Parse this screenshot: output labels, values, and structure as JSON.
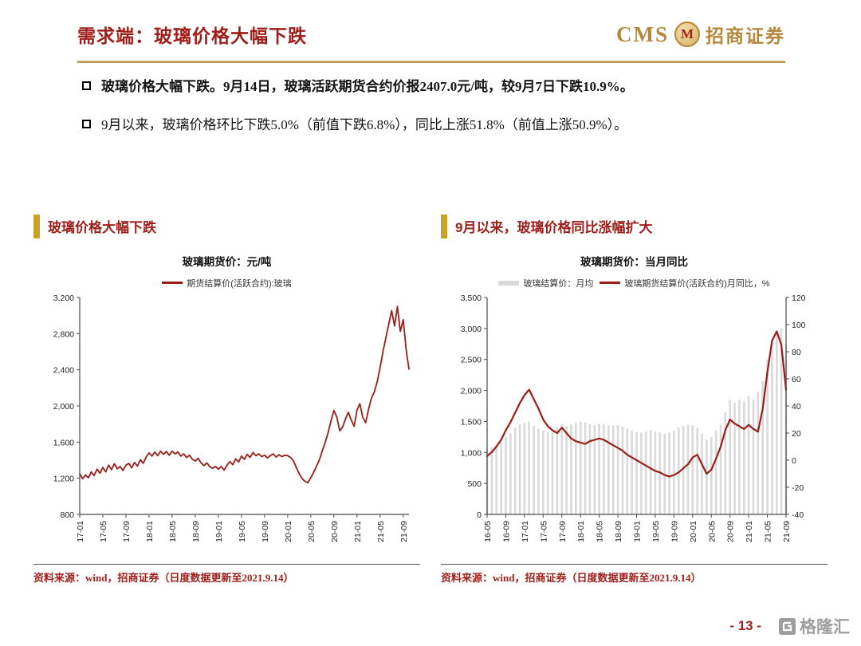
{
  "header": {
    "title": "需求端：玻璃价格大幅下跌",
    "brand": {
      "cms": "CMS",
      "logo_letter": "M",
      "name": "招商证券"
    }
  },
  "bullets": [
    {
      "lead": "玻璃价格大幅下跌。",
      "text": "9月14日，玻璃活跃期货合约价报2407.0元/吨，较9月7日下跌10.9%。"
    },
    {
      "lead": "",
      "text": "9月以来，玻璃价格环比下跌5.0%（前值下跌6.8%），同比上涨51.8%（前值上涨50.9%）。"
    }
  ],
  "footer": {
    "page": "- 13 -",
    "brand": "格隆汇"
  },
  "colors": {
    "accent_red": "#9A1D18",
    "gold": "#C9A227",
    "bar_gray": "#D9D9D9",
    "brand_gold": "#B5873B"
  },
  "chart_data": [
    {
      "type": "line",
      "section_title": "玻璃价格大幅下跌",
      "title": "玻璃期货价：元/吨",
      "source": "资料来源：wind，招商证券（日度数据更新至2021.9.14）",
      "legend_position": "top",
      "grid": false,
      "y_left": {
        "min": 800,
        "max": 3200,
        "ticks": [
          800,
          1200,
          1600,
          2000,
          2400,
          2800,
          3200
        ],
        "labels": [
          "800",
          "1,200",
          "1,600",
          "2,000",
          "2,400",
          "2,800",
          "3,200"
        ]
      },
      "xticks": [
        "17-01",
        "17-05",
        "17-09",
        "18-01",
        "18-05",
        "18-09",
        "19-01",
        "19-05",
        "19-09",
        "20-01",
        "20-05",
        "20-09",
        "21-01",
        "21-05",
        "21-09"
      ],
      "xtick_every": 8,
      "series": [
        {
          "name": "期货结算价(活跃合约):玻璃",
          "type": "line",
          "axis": "left",
          "color": "#9A1D18",
          "width": 1.8,
          "values": [
            1250,
            1195,
            1235,
            1205,
            1270,
            1230,
            1300,
            1255,
            1320,
            1270,
            1345,
            1295,
            1360,
            1305,
            1330,
            1285,
            1345,
            1365,
            1315,
            1375,
            1335,
            1405,
            1365,
            1435,
            1480,
            1445,
            1490,
            1450,
            1500,
            1465,
            1495,
            1455,
            1500,
            1470,
            1490,
            1445,
            1470,
            1430,
            1455,
            1410,
            1390,
            1420,
            1370,
            1340,
            1370,
            1330,
            1310,
            1330,
            1300,
            1330,
            1290,
            1345,
            1385,
            1350,
            1415,
            1380,
            1445,
            1410,
            1465,
            1430,
            1485,
            1450,
            1470,
            1440,
            1455,
            1425,
            1450,
            1470,
            1435,
            1460,
            1440,
            1455,
            1450,
            1430,
            1390,
            1320,
            1250,
            1195,
            1165,
            1150,
            1205,
            1265,
            1335,
            1405,
            1505,
            1595,
            1705,
            1835,
            1950,
            1880,
            1725,
            1765,
            1855,
            1930,
            1845,
            1775,
            1955,
            2025,
            1875,
            1815,
            1965,
            2085,
            2155,
            2265,
            2425,
            2600,
            2755,
            2905,
            3055,
            2885,
            3100,
            2825,
            2955,
            2625,
            2407
          ]
        }
      ]
    },
    {
      "type": "combo",
      "section_title": "9月以来，玻璃价格同比涨幅扩大",
      "title": "玻璃期货价：当月同比",
      "source": "资料来源：wind，招商证券（日度数据更新至2021.9.14）",
      "legend_position": "top",
      "grid": false,
      "y_left": {
        "min": 0,
        "max": 3500,
        "ticks": [
          0,
          500,
          1000,
          1500,
          2000,
          2500,
          3000,
          3500
        ],
        "labels": [
          "0",
          "500",
          "1,000",
          "1,500",
          "2,000",
          "2,500",
          "3,000",
          "3,500"
        ]
      },
      "y_right": {
        "min": -40,
        "max": 120,
        "ticks": [
          -40,
          -20,
          0,
          20,
          40,
          60,
          80,
          100,
          120
        ],
        "labels": [
          "-40",
          "-20",
          "0",
          "20",
          "40",
          "60",
          "80",
          "100",
          "120"
        ]
      },
      "xticks": [
        "16-05",
        "16-09",
        "17-01",
        "17-05",
        "17-09",
        "18-01",
        "18-05",
        "18-09",
        "19-01",
        "19-05",
        "19-09",
        "20-01",
        "20-05",
        "20-09",
        "21-01",
        "21-05",
        "21-09"
      ],
      "xtick_every": 4,
      "series": [
        {
          "name": "玻璃结算价：月均",
          "type": "bar",
          "axis": "left",
          "color": "#D9D9D9",
          "values": [
            1050,
            1080,
            1110,
            1160,
            1255,
            1310,
            1400,
            1455,
            1480,
            1500,
            1430,
            1385,
            1350,
            1325,
            1350,
            1400,
            1450,
            1425,
            1450,
            1480,
            1500,
            1480,
            1455,
            1440,
            1460,
            1450,
            1440,
            1430,
            1440,
            1420,
            1385,
            1350,
            1330,
            1320,
            1340,
            1360,
            1340,
            1320,
            1300,
            1320,
            1350,
            1400,
            1430,
            1450,
            1440,
            1400,
            1300,
            1205,
            1250,
            1350,
            1450,
            1650,
            1850,
            1800,
            1850,
            1830,
            1905,
            1850,
            1980,
            2150,
            2500,
            2800,
            2950,
            3000,
            2750
          ]
        },
        {
          "name": "玻璃期货结算价(活跃合约)月同比，%",
          "type": "line",
          "axis": "right",
          "color": "#9A1D18",
          "width": 2.2,
          "values": [
            3,
            6,
            10,
            15,
            22,
            28,
            35,
            42,
            48,
            52,
            45,
            38,
            30,
            25,
            22,
            20,
            24,
            20,
            16,
            14,
            13,
            12,
            14,
            15,
            16,
            15,
            13,
            11,
            9,
            7,
            4,
            2,
            0,
            -2,
            -4,
            -6,
            -8,
            -9,
            -11,
            -12,
            -11,
            -9,
            -6,
            -3,
            2,
            4,
            -3,
            -10,
            -7,
            1,
            10,
            22,
            30,
            27,
            25,
            23,
            26,
            23,
            21,
            38,
            65,
            88,
            95,
            85,
            51.8
          ]
        }
      ]
    }
  ]
}
